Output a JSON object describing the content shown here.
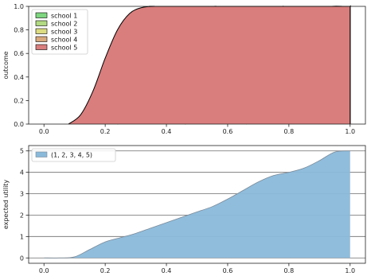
{
  "chart_data": [
    {
      "type": "area",
      "ylabel": "outcome",
      "xlim": [
        -0.05,
        1.05
      ],
      "ylim": [
        0.0,
        1.0
      ],
      "xticks": [
        "0.0",
        "0.2",
        "0.4",
        "0.6",
        "0.8",
        "1.0"
      ],
      "yticks": [
        "0.0",
        "0.2",
        "0.4",
        "0.6",
        "0.8",
        "1.0"
      ],
      "grid": false,
      "legend_position": "top-left",
      "series": [
        {
          "name": "school 1",
          "color": "#7ed67f",
          "x": [
            0.9,
            0.92,
            0.94,
            0.96,
            0.98,
            1.0
          ],
          "y": [
            0.0,
            0.1,
            0.33,
            0.68,
            0.93,
            1.0
          ]
        },
        {
          "name": "school 2",
          "color": "#b2da82",
          "x": [
            0.66,
            0.7,
            0.74,
            0.78,
            0.82,
            0.86,
            0.9,
            0.94,
            0.98
          ],
          "y": [
            0.0,
            0.06,
            0.2,
            0.43,
            0.68,
            0.87,
            0.97,
            1.0,
            1.0
          ]
        },
        {
          "name": "school 3",
          "color": "#dcdc82",
          "x": [
            0.46,
            0.5,
            0.54,
            0.58,
            0.62,
            0.66,
            0.7,
            0.74,
            0.78,
            0.8
          ],
          "y": [
            0.0,
            0.05,
            0.17,
            0.38,
            0.63,
            0.84,
            0.96,
            0.99,
            1.0,
            1.0
          ]
        },
        {
          "name": "school 4",
          "color": "#d9aa7e",
          "x": [
            0.24,
            0.28,
            0.32,
            0.36,
            0.4,
            0.44,
            0.48,
            0.52,
            0.56,
            0.6
          ],
          "y": [
            0.0,
            0.05,
            0.18,
            0.41,
            0.66,
            0.86,
            0.96,
            0.99,
            1.0,
            1.0
          ]
        },
        {
          "name": "school 5",
          "color": "#da7d7d",
          "x": [
            0.08,
            0.12,
            0.16,
            0.2,
            0.24,
            0.28,
            0.32,
            0.36,
            0.4
          ],
          "y": [
            0.0,
            0.08,
            0.28,
            0.56,
            0.8,
            0.94,
            0.99,
            1.0,
            1.0
          ]
        }
      ]
    },
    {
      "type": "area",
      "ylabel": "expected utility",
      "xlim": [
        -0.05,
        1.05
      ],
      "ylim": [
        -0.25,
        5.25
      ],
      "xticks": [
        "0.0",
        "0.2",
        "0.4",
        "0.6",
        "0.8",
        "1.0"
      ],
      "yticks": [
        "0",
        "1",
        "2",
        "3",
        "4",
        "5"
      ],
      "grid": true,
      "legend_position": "top-left",
      "series": [
        {
          "name": "(1, 2, 3, 4, 5)",
          "color": "#8ab9da",
          "x": [
            0.0,
            0.05,
            0.1,
            0.15,
            0.2,
            0.25,
            0.3,
            0.35,
            0.4,
            0.45,
            0.5,
            0.55,
            0.6,
            0.65,
            0.7,
            0.75,
            0.8,
            0.85,
            0.9,
            0.95,
            1.0
          ],
          "y": [
            0.0,
            0.0,
            0.05,
            0.4,
            0.75,
            0.95,
            1.15,
            1.4,
            1.65,
            1.9,
            2.15,
            2.4,
            2.75,
            3.15,
            3.55,
            3.85,
            4.0,
            4.2,
            4.55,
            4.95,
            5.0
          ]
        }
      ]
    }
  ]
}
